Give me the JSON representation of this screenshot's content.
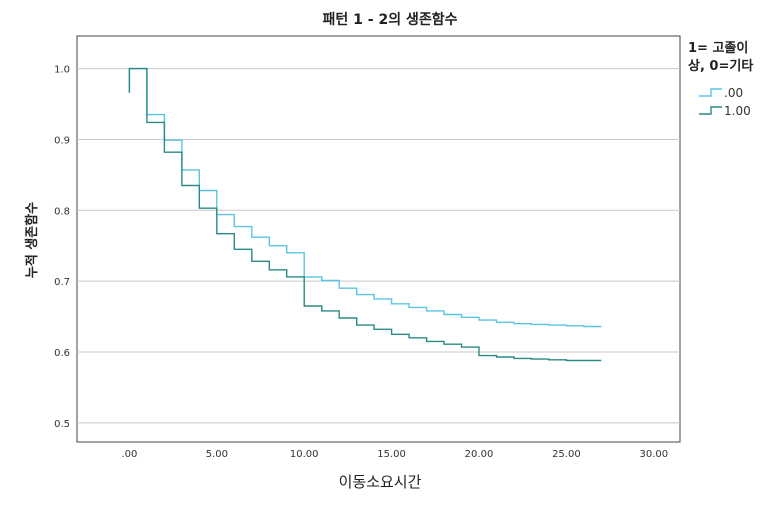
{
  "chart_data": {
    "type": "line",
    "title": "패턴 1 - 2의 생존함수",
    "xlabel": "이동소요시간",
    "ylabel": "누적 생존함수",
    "xlim": [
      -3.0,
      31.5
    ],
    "ylim": [
      0.473,
      1.046
    ],
    "x_ticks": [
      0,
      5,
      10,
      15,
      20,
      25,
      30
    ],
    "x_tick_labels": [
      ".00",
      "5.00",
      "10.00",
      "15.00",
      "20.00",
      "25.00",
      "30.00"
    ],
    "y_ticks": [
      0.5,
      0.6,
      0.7,
      0.8,
      0.9,
      1.0
    ],
    "y_tick_labels": [
      "0.5",
      "0.6",
      "0.7",
      "0.8",
      "0.9",
      "1.0"
    ],
    "grid": {
      "horizontal": true,
      "vertical": false
    },
    "legend": {
      "title": "1= 고졸이상, 0=기타",
      "title_lines": [
        "1= 고졸이",
        "상, 0=기타"
      ],
      "position": "right"
    },
    "step": true,
    "series": [
      {
        "name": ".00",
        "color": "#5bc4e6",
        "x": [
          0,
          1,
          2,
          3,
          4,
          5,
          6,
          7,
          8,
          9,
          10,
          11,
          12,
          13,
          14,
          15,
          16,
          17,
          18,
          19,
          20,
          21,
          22,
          23,
          24,
          25,
          26,
          27
        ],
        "y": [
          1.0,
          0.935,
          0.899,
          0.857,
          0.828,
          0.794,
          0.777,
          0.762,
          0.75,
          0.74,
          0.706,
          0.701,
          0.69,
          0.681,
          0.675,
          0.668,
          0.663,
          0.658,
          0.653,
          0.649,
          0.645,
          0.642,
          0.64,
          0.639,
          0.638,
          0.637,
          0.636,
          0.636
        ]
      },
      {
        "name": "1.00",
        "color": "#2a8a86",
        "x": [
          0,
          1,
          2,
          3,
          4,
          5,
          6,
          7,
          8,
          9,
          10,
          11,
          12,
          13,
          14,
          15,
          16,
          17,
          18,
          19,
          20,
          21,
          22,
          23,
          24,
          25,
          26,
          27
        ],
        "y": [
          1.0,
          0.924,
          0.882,
          0.835,
          0.803,
          0.767,
          0.745,
          0.728,
          0.716,
          0.706,
          0.665,
          0.658,
          0.648,
          0.638,
          0.632,
          0.625,
          0.62,
          0.615,
          0.611,
          0.607,
          0.595,
          0.593,
          0.591,
          0.59,
          0.589,
          0.588,
          0.588,
          0.588
        ]
      }
    ]
  }
}
